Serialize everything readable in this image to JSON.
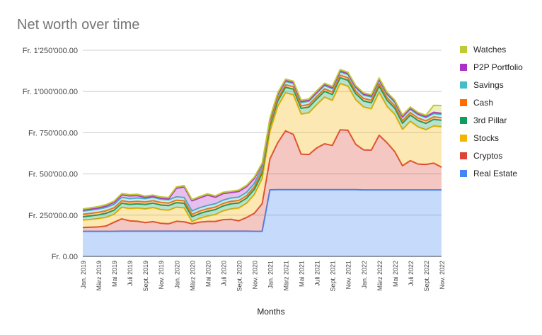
{
  "chart_data": {
    "type": "area",
    "stacked": true,
    "title": "Net worth over time",
    "xlabel": "Months",
    "ylabel": "",
    "ylim": [
      0,
      1250000
    ],
    "yticks": [
      0,
      250000,
      500000,
      750000,
      1000000,
      1250000
    ],
    "ytick_labels": [
      "Fr. 0.00",
      "Fr. 250'000.00",
      "Fr. 500'000.00",
      "Fr. 750'000.00",
      "Fr. 1'000'000.00",
      "Fr. 1'250'000.00"
    ],
    "grid": true,
    "legend_position": "right",
    "x": [
      "Jan. 2019",
      "Feb. 2019",
      "März 2019",
      "Apr. 2019",
      "Mai 2019",
      "Juni 2019",
      "Juli 2019",
      "Aug. 2019",
      "Sept. 2019",
      "Okt. 2019",
      "Nov. 2019",
      "Dez. 2019",
      "Jan. 2020",
      "Feb. 2020",
      "März 2020",
      "Apr. 2020",
      "Mai 2020",
      "Juni 2020",
      "Juli 2020",
      "Aug. 2020",
      "Sept. 2020",
      "Okt. 2020",
      "Nov. 2020",
      "Dez. 2020",
      "Jan. 2021",
      "Feb. 2021",
      "März 2021",
      "Apr. 2021",
      "Mai 2021",
      "Juni 2021",
      "Juli 2021",
      "Aug. 2021",
      "Sept. 2021",
      "Okt. 2021",
      "Nov. 2021",
      "Dez. 2021",
      "Jan. 2022",
      "Feb. 2022",
      "März 2022",
      "Apr. 2022",
      "Mai 2022",
      "Juni 2022",
      "Juli 2022",
      "Aug. 2022",
      "Sept. 2022",
      "Okt. 2022",
      "Nov. 2022"
    ],
    "x_tick_labels": [
      "Jan. 2019",
      "",
      "März 2019",
      "",
      "Mai 2019",
      "",
      "Juli 2019",
      "",
      "Sept. 2019",
      "",
      "Nov. 2019",
      "",
      "Jan. 2020",
      "",
      "März 2020",
      "",
      "Mai 2020",
      "",
      "Juli 2020",
      "",
      "Sept. 2020",
      "",
      "Nov. 2020",
      "",
      "Jan. 2021",
      "",
      "März 2021",
      "",
      "Mai 2021",
      "",
      "Juli 2021",
      "",
      "Sept. 2021",
      "",
      "Nov. 2021",
      "",
      "Jan. 2022",
      "",
      "März 2022",
      "",
      "Mai 2022",
      "",
      "Juli 2022",
      "",
      "Sept. 2022",
      "",
      "Nov. 2022"
    ],
    "series": [
      {
        "name": "Real Estate",
        "color": "#4285f4",
        "values": [
          152000,
          152000,
          152000,
          152000,
          152000,
          153000,
          153000,
          153000,
          153000,
          153000,
          153000,
          153000,
          153000,
          153000,
          153000,
          153000,
          153000,
          153000,
          153000,
          153000,
          153000,
          153000,
          152000,
          152000,
          404000,
          405000,
          405000,
          405000,
          405000,
          405000,
          405000,
          405000,
          405000,
          405000,
          405000,
          405000,
          403000,
          403000,
          403000,
          403000,
          403000,
          403000,
          403000,
          403000,
          403000,
          403000,
          403000
        ]
      },
      {
        "name": "Cryptos",
        "color": "#db4437",
        "values": [
          23000,
          25000,
          27000,
          33000,
          55000,
          75000,
          63000,
          60000,
          52000,
          58000,
          48000,
          45000,
          60000,
          57000,
          45000,
          55000,
          59000,
          59000,
          70000,
          72000,
          63000,
          83000,
          110000,
          168000,
          188000,
          285000,
          357000,
          335000,
          215000,
          213000,
          253000,
          278000,
          268000,
          363000,
          360000,
          275000,
          243000,
          242000,
          332000,
          287000,
          233000,
          147000,
          178000,
          157000,
          155000,
          163000,
          138000
        ]
      },
      {
        "name": "Stocks",
        "color": "#f4b400",
        "values": [
          45000,
          47000,
          50000,
          52000,
          48000,
          70000,
          74000,
          80000,
          83000,
          85000,
          83000,
          82000,
          85000,
          84000,
          13000,
          23000,
          32000,
          42000,
          53000,
          63000,
          77000,
          86000,
          113000,
          152000,
          165000,
          220000,
          230000,
          240000,
          243000,
          253000,
          262000,
          283000,
          273000,
          280000,
          267000,
          270000,
          260000,
          250000,
          260000,
          220000,
          225000,
          220000,
          238000,
          225000,
          210000,
          225000,
          245000
        ]
      },
      {
        "name": "3rd Pillar",
        "color": "#0f9d58",
        "values": [
          20000,
          22000,
          23000,
          25000,
          25000,
          25000,
          25000,
          26000,
          27000,
          27000,
          28000,
          28000,
          28000,
          28000,
          29000,
          29000,
          30000,
          30000,
          30000,
          31000,
          31000,
          31000,
          32000,
          32000,
          33000,
          33000,
          34000,
          34000,
          35000,
          35000,
          35000,
          35000,
          36000,
          36000,
          36000,
          37000,
          37000,
          37000,
          38000,
          38000,
          38000,
          38000,
          38000,
          39000,
          39000,
          40000,
          40000
        ]
      },
      {
        "name": "Cash",
        "color": "#ff6d00",
        "values": [
          15000,
          15000,
          15000,
          15000,
          15000,
          15000,
          15000,
          15000,
          15000,
          15000,
          15000,
          15000,
          15000,
          15000,
          15000,
          15000,
          15000,
          15000,
          15000,
          15000,
          15000,
          15000,
          15000,
          15000,
          15000,
          15000,
          15000,
          15000,
          15000,
          15000,
          15000,
          15000,
          15000,
          15000,
          15000,
          15000,
          15000,
          15000,
          15000,
          15000,
          15000,
          15000,
          15000,
          15000,
          15000,
          15000,
          15000
        ]
      },
      {
        "name": "Savings",
        "color": "#46bdc6",
        "values": [
          20000,
          20000,
          20000,
          20000,
          20000,
          20000,
          20000,
          20000,
          20000,
          20000,
          20000,
          20000,
          20000,
          20000,
          20000,
          20000,
          20000,
          20000,
          20000,
          20000,
          20000,
          20000,
          20000,
          20000,
          20000,
          20000,
          20000,
          20000,
          20000,
          20000,
          20000,
          20000,
          20000,
          20000,
          20000,
          20000,
          20000,
          20000,
          20000,
          20000,
          20000,
          20000,
          20000,
          20000,
          20000,
          20000,
          20000
        ]
      },
      {
        "name": "P2P Portfolio",
        "color": "#ab30c4",
        "values": [
          5000,
          6000,
          7000,
          9000,
          12000,
          15000,
          17000,
          15000,
          8000,
          6000,
          6000,
          6000,
          52000,
          65000,
          62000,
          60000,
          63000,
          40000,
          40000,
          33000,
          35000,
          35000,
          31000,
          19000,
          6000,
          6000,
          6000,
          6000,
          6000,
          6000,
          6000,
          6000,
          6000,
          6000,
          6000,
          6000,
          6000,
          6000,
          6000,
          6000,
          6000,
          6000,
          6000,
          6000,
          6000,
          8000,
          7000
        ]
      },
      {
        "name": "Watches",
        "color": "#c0ca33",
        "values": [
          8000,
          8000,
          8000,
          8000,
          8000,
          8000,
          8000,
          8000,
          8000,
          8000,
          8000,
          8000,
          8000,
          8000,
          8000,
          8000,
          8000,
          8000,
          8000,
          8000,
          8000,
          8000,
          8000,
          8000,
          8000,
          8000,
          8000,
          8000,
          8000,
          8000,
          8000,
          8000,
          8000,
          8000,
          8000,
          8000,
          8000,
          8000,
          8000,
          8000,
          8000,
          8000,
          8000,
          8000,
          8000,
          42000,
          47000
        ]
      }
    ]
  }
}
